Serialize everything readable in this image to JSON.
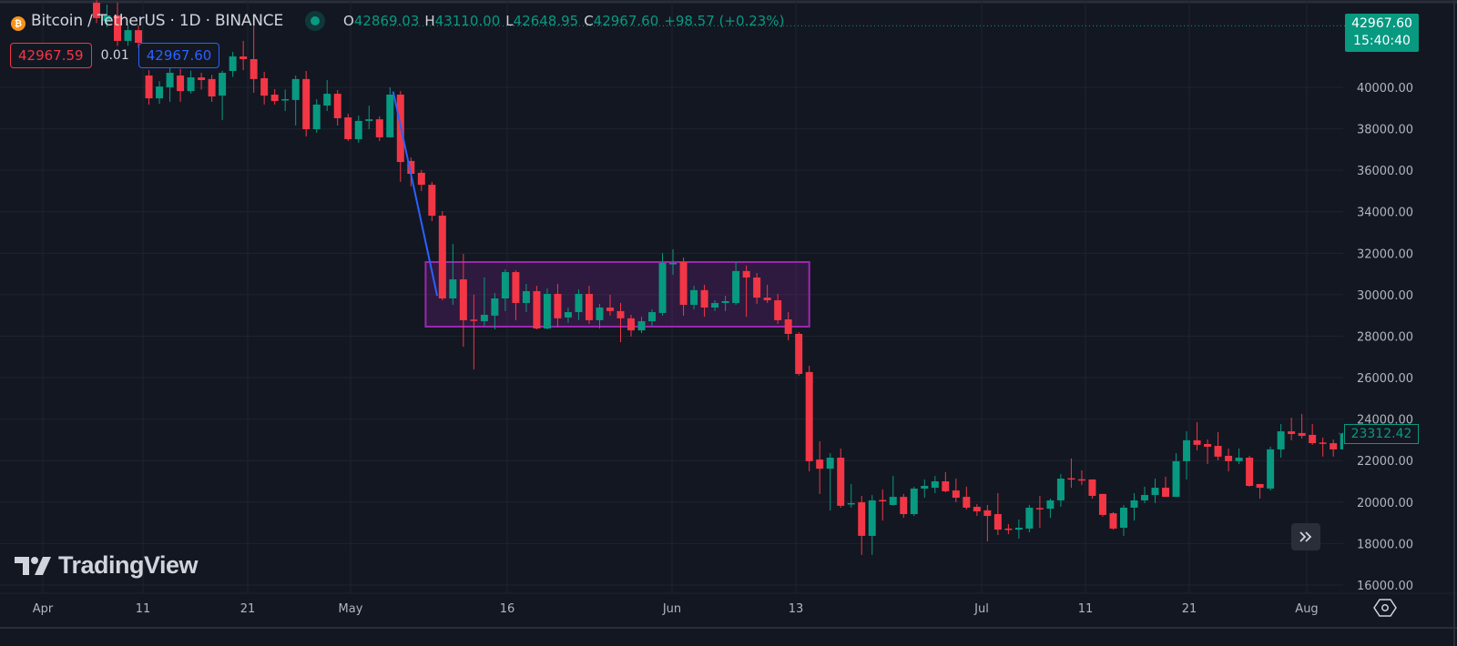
{
  "header": {
    "title": "Bitcoin / TetherUS · 1D · BINANCE",
    "icon": "bitcoin-icon",
    "ohlc": [
      {
        "key": "O",
        "value": "42869.03"
      },
      {
        "key": "H",
        "value": "43110.00"
      },
      {
        "key": "L",
        "value": "42648.95"
      },
      {
        "key": "C",
        "value": "42967.60"
      }
    ],
    "change": "+98.57 (+0.23%)"
  },
  "trade": {
    "sell": "42967.59",
    "spread": "0.01",
    "buy": "42967.60"
  },
  "last_price_label": {
    "price": "42967.60",
    "countdown": "15:40:40"
  },
  "current_price_label": "23312.42",
  "logo_text": "TradingView",
  "colors": {
    "up": "#089981",
    "down": "#f23645",
    "background": "#131722",
    "grid": "#1f2330",
    "trendline": "#2962ff",
    "rectangle_border": "#9c27b0"
  },
  "chart_data": {
    "type": "candlestick",
    "symbol": "Bitcoin / TetherUS",
    "interval": "1D",
    "exchange": "BINANCE",
    "y_ticks": [
      "40000.00",
      "38000.00",
      "36000.00",
      "34000.00",
      "32000.00",
      "30000.00",
      "28000.00",
      "26000.00",
      "24000.00",
      "22000.00",
      "20000.00",
      "18000.00",
      "16000.00"
    ],
    "ylim": [
      16000,
      44200
    ],
    "x_ticks": [
      "Apr",
      "11",
      "21",
      "May",
      "16",
      "Jun",
      "13",
      "Jul",
      "11",
      "21",
      "Aug"
    ],
    "grid": true,
    "candles_ohlc": [
      [
        44080,
        44200,
        43100,
        43340
      ],
      [
        43200,
        43990,
        42900,
        43470
      ],
      [
        43470,
        44080,
        42000,
        42240
      ],
      [
        42240,
        43000,
        42000,
        42760
      ],
      [
        42760,
        43000,
        41900,
        42150
      ],
      [
        40570,
        40830,
        39170,
        39470
      ],
      [
        39470,
        40300,
        39200,
        40040
      ],
      [
        40000,
        41000,
        39300,
        40700
      ],
      [
        40570,
        40900,
        39300,
        39820
      ],
      [
        39820,
        40800,
        39700,
        40480
      ],
      [
        40480,
        40700,
        39900,
        40350
      ],
      [
        40400,
        40600,
        39300,
        39560
      ],
      [
        39600,
        40800,
        38420,
        40700
      ],
      [
        40790,
        41710,
        40500,
        41490
      ],
      [
        41490,
        42240,
        40830,
        41360
      ],
      [
        41360,
        43030,
        39740,
        40400
      ],
      [
        40440,
        40750,
        39170,
        39600
      ],
      [
        39650,
        39910,
        39170,
        39340
      ],
      [
        39400,
        39900,
        38860,
        39430
      ],
      [
        39390,
        40570,
        38160,
        40400
      ],
      [
        40400,
        40790,
        37630,
        37980
      ],
      [
        37980,
        39430,
        37810,
        39170
      ],
      [
        39120,
        40350,
        38860,
        39690
      ],
      [
        39690,
        39870,
        38160,
        38510
      ],
      [
        38550,
        38730,
        37410,
        37500
      ],
      [
        37500,
        38640,
        37320,
        38380
      ],
      [
        38380,
        39120,
        37980,
        38460
      ],
      [
        38460,
        38600,
        37410,
        37590
      ],
      [
        37590,
        40000,
        37590,
        39650
      ],
      [
        39650,
        39820,
        35440,
        36400
      ],
      [
        36450,
        36620,
        35220,
        35830
      ],
      [
        35880,
        36010,
        35000,
        35300
      ],
      [
        35300,
        35440,
        33550,
        33810
      ],
      [
        33810,
        34030,
        29730,
        29820
      ],
      [
        29820,
        32450,
        29510,
        30740
      ],
      [
        30740,
        31970,
        27490,
        28770
      ],
      [
        28800,
        30000,
        26400,
        28760
      ],
      [
        28720,
        30830,
        28500,
        29030
      ],
      [
        28990,
        30080,
        28330,
        29820
      ],
      [
        29820,
        31220,
        29210,
        31090
      ],
      [
        31090,
        31180,
        28770,
        29600
      ],
      [
        29600,
        30520,
        29160,
        30170
      ],
      [
        30170,
        30430,
        28330,
        28370
      ],
      [
        28370,
        30300,
        28330,
        30040
      ],
      [
        30040,
        30520,
        28420,
        28860
      ],
      [
        28900,
        29380,
        28640,
        29160
      ],
      [
        29160,
        30260,
        28770,
        30040
      ],
      [
        30040,
        30430,
        28590,
        28770
      ],
      [
        28770,
        29560,
        28370,
        29380
      ],
      [
        29380,
        30000,
        28990,
        29210
      ],
      [
        29210,
        29600,
        27710,
        28860
      ],
      [
        28860,
        29030,
        27980,
        28280
      ],
      [
        28280,
        28940,
        28150,
        28720
      ],
      [
        28720,
        29290,
        28500,
        29160
      ],
      [
        29120,
        32010,
        28990,
        31530
      ],
      [
        31480,
        32190,
        30960,
        31530
      ],
      [
        31580,
        31790,
        28990,
        29510
      ],
      [
        29510,
        30430,
        29290,
        30220
      ],
      [
        30220,
        30480,
        28940,
        29380
      ],
      [
        29380,
        29730,
        29210,
        29600
      ],
      [
        29600,
        29950,
        29210,
        29690
      ],
      [
        29600,
        31580,
        29510,
        31140
      ],
      [
        31140,
        31400,
        28940,
        30830
      ],
      [
        30830,
        31050,
        29560,
        29860
      ],
      [
        29860,
        30480,
        29600,
        29730
      ],
      [
        29730,
        30040,
        28590,
        28770
      ],
      [
        28810,
        29160,
        27800,
        28110
      ],
      [
        28110,
        28200,
        26100,
        26180
      ],
      [
        26270,
        26570,
        21480,
        21970
      ],
      [
        22050,
        22930,
        20390,
        21610
      ],
      [
        21610,
        22360,
        19600,
        22140
      ],
      [
        22140,
        22580,
        19730,
        19820
      ],
      [
        19900,
        20870,
        19730,
        19950
      ],
      [
        19990,
        20300,
        17450,
        18370
      ],
      [
        18370,
        20340,
        17450,
        20080
      ],
      [
        20100,
        20610,
        19110,
        20050
      ],
      [
        19860,
        21260,
        19820,
        20250
      ],
      [
        20250,
        20390,
        19240,
        19420
      ],
      [
        19420,
        20740,
        19330,
        20650
      ],
      [
        20650,
        21090,
        20210,
        20780
      ],
      [
        20690,
        21260,
        20430,
        21000
      ],
      [
        21000,
        21440,
        20470,
        20520
      ],
      [
        20560,
        21130,
        19990,
        20210
      ],
      [
        20250,
        20740,
        19640,
        19730
      ],
      [
        19770,
        19900,
        19330,
        19550
      ],
      [
        19600,
        19860,
        18100,
        19330
      ],
      [
        19420,
        20430,
        18410,
        18670
      ],
      [
        18720,
        18940,
        18450,
        18670
      ],
      [
        18670,
        19160,
        18240,
        18760
      ],
      [
        18720,
        19860,
        18540,
        19730
      ],
      [
        19710,
        20300,
        18760,
        19680
      ],
      [
        19680,
        20170,
        19240,
        20080
      ],
      [
        20080,
        21350,
        19770,
        21130
      ],
      [
        21150,
        22100,
        20690,
        21100
      ],
      [
        21100,
        21530,
        20820,
        21080
      ],
      [
        21090,
        21090,
        20170,
        20300
      ],
      [
        20390,
        20400,
        19300,
        19380
      ],
      [
        19460,
        19510,
        18670,
        18720
      ],
      [
        18760,
        19860,
        18370,
        19730
      ],
      [
        19730,
        20430,
        19110,
        20080
      ],
      [
        20080,
        20740,
        19950,
        20340
      ],
      [
        20340,
        21130,
        19950,
        20690
      ],
      [
        20690,
        21220,
        20250,
        20250
      ],
      [
        20250,
        22360,
        20250,
        21970
      ],
      [
        21970,
        23410,
        21090,
        22980
      ],
      [
        22980,
        23850,
        22490,
        22760
      ],
      [
        22800,
        23020,
        21830,
        22670
      ],
      [
        22710,
        23370,
        22010,
        22190
      ],
      [
        22230,
        22580,
        21480,
        21970
      ],
      [
        21970,
        22580,
        21830,
        22140
      ],
      [
        22140,
        22230,
        20740,
        20780
      ],
      [
        20870,
        20870,
        20170,
        20690
      ],
      [
        20650,
        22670,
        20560,
        22540
      ],
      [
        22540,
        23760,
        22140,
        23410
      ],
      [
        23410,
        24070,
        22980,
        23280
      ],
      [
        23330,
        24250,
        23060,
        23190
      ],
      [
        23240,
        23760,
        22760,
        22840
      ],
      [
        22870,
        23110,
        22190,
        22820
      ],
      [
        22840,
        23020,
        22190,
        22540
      ],
      [
        22540,
        23400,
        22400,
        23312.42
      ]
    ],
    "drawings": {
      "trendline": {
        "from": {
          "bar": 28.3,
          "price": 39800
        },
        "to": {
          "bar": 32.5,
          "price": 29950
        }
      },
      "rectangle": {
        "from_bar": 31.4,
        "to_bar": 68.0,
        "top_price": 31575,
        "bottom_price": 28460
      }
    },
    "last_price": 42967.6
  },
  "controls": {
    "scroll_icon": "double-chevron-right-icon",
    "settings_icon": "eye-settings-icon"
  }
}
